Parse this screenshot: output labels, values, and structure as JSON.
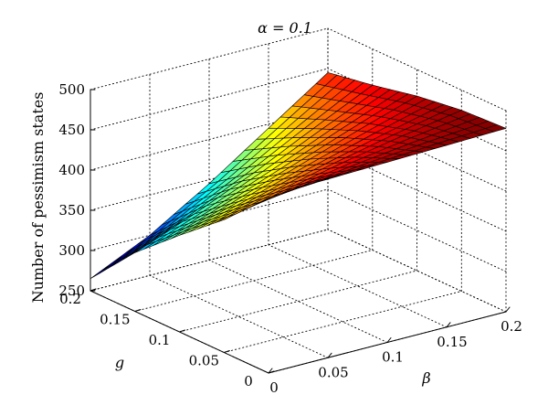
{
  "chart_data": {
    "type": "surface",
    "title": "α = 0.1",
    "xlabel": "β",
    "ylabel": "g",
    "zlabel": "Number of pessimism states",
    "xlim": [
      0,
      0.2
    ],
    "ylim": [
      0,
      0.2
    ],
    "zlim": [
      250,
      500
    ],
    "x_ticks": [
      "0",
      "0.05",
      "0.1",
      "0.15",
      "0.2"
    ],
    "y_ticks": [
      "0",
      "0.05",
      "0.1",
      "0.15",
      "0.2"
    ],
    "z_ticks": [
      "250",
      "300",
      "350",
      "400",
      "450",
      "500"
    ],
    "grid": true,
    "colormap": "jet",
    "x": [
      0,
      0.05,
      0.1,
      0.15,
      0.2
    ],
    "y": [
      0,
      0.05,
      0.1,
      0.15,
      0.2
    ],
    "z": [
      [
        470,
        472,
        474,
        476,
        478
      ],
      [
        415,
        432,
        448,
        462,
        475
      ],
      [
        370,
        393,
        418,
        443,
        467
      ],
      [
        323,
        352,
        384,
        420,
        455
      ],
      [
        265,
        300,
        345,
        395,
        445
      ]
    ]
  }
}
